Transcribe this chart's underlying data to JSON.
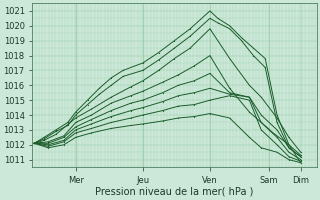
{
  "xlabel": "Pression niveau de la mer( hPa )",
  "background_color": "#cce8d8",
  "grid_color": "#99ccaa",
  "line_color": "#1a5c2a",
  "ylim": [
    1010.5,
    1021.5
  ],
  "yticks": [
    1011,
    1012,
    1013,
    1014,
    1015,
    1016,
    1017,
    1018,
    1019,
    1020,
    1021
  ],
  "xlim": [
    0.0,
    7.2
  ],
  "xtick_positions": [
    1.1,
    2.8,
    4.5,
    6.0,
    6.8
  ],
  "xtick_labels": [
    "Mer",
    "Jeu",
    "Ven",
    "Sam",
    "Dim"
  ],
  "day_vlines": [
    1.1,
    2.8,
    4.5,
    6.0
  ],
  "lines": [
    {
      "x": [
        0.05,
        0.3,
        0.6,
        0.9,
        1.1,
        1.4,
        1.7,
        2.0,
        2.3,
        2.8,
        3.2,
        3.6,
        4.0,
        4.5,
        4.7,
        5.0,
        5.3,
        5.6,
        5.9,
        6.2,
        6.5,
        6.8
      ],
      "y": [
        1012.1,
        1012.5,
        1013.0,
        1013.5,
        1014.2,
        1015.0,
        1015.8,
        1016.5,
        1017.0,
        1017.5,
        1018.2,
        1019.0,
        1019.8,
        1021.0,
        1020.5,
        1020.0,
        1019.2,
        1018.5,
        1017.8,
        1014.0,
        1012.0,
        1010.8
      ]
    },
    {
      "x": [
        0.05,
        0.3,
        0.6,
        0.9,
        1.1,
        1.4,
        1.7,
        2.0,
        2.3,
        2.8,
        3.2,
        3.6,
        4.0,
        4.5,
        4.7,
        5.0,
        5.3,
        5.6,
        5.9,
        6.2,
        6.5,
        6.8
      ],
      "y": [
        1012.1,
        1012.4,
        1012.9,
        1013.3,
        1014.0,
        1014.7,
        1015.4,
        1016.0,
        1016.6,
        1017.0,
        1017.7,
        1018.5,
        1019.3,
        1020.5,
        1020.2,
        1019.8,
        1019.0,
        1018.0,
        1017.2,
        1013.5,
        1011.8,
        1011.2
      ]
    },
    {
      "x": [
        0.05,
        0.3,
        0.6,
        1.1,
        1.5,
        2.0,
        2.5,
        2.8,
        3.2,
        3.6,
        4.0,
        4.5,
        5.0,
        5.5,
        5.8,
        6.2,
        6.5,
        6.8
      ],
      "y": [
        1012.1,
        1012.3,
        1012.7,
        1013.8,
        1014.4,
        1015.2,
        1015.9,
        1016.3,
        1017.0,
        1017.8,
        1018.5,
        1019.8,
        1017.8,
        1016.0,
        1015.2,
        1013.8,
        1012.5,
        1011.5
      ]
    },
    {
      "x": [
        0.05,
        0.4,
        0.8,
        1.1,
        1.5,
        2.0,
        2.5,
        2.8,
        3.3,
        3.7,
        4.1,
        4.5,
        5.0,
        5.5,
        5.8,
        6.1,
        6.5,
        6.8
      ],
      "y": [
        1012.1,
        1012.2,
        1012.6,
        1013.5,
        1014.0,
        1014.8,
        1015.3,
        1015.6,
        1016.2,
        1016.7,
        1017.3,
        1018.0,
        1015.8,
        1014.2,
        1013.5,
        1012.8,
        1012.0,
        1011.3
      ]
    },
    {
      "x": [
        0.05,
        0.4,
        0.8,
        1.1,
        1.5,
        2.0,
        2.5,
        2.8,
        3.3,
        3.7,
        4.1,
        4.5,
        5.0,
        5.5,
        5.8,
        6.2,
        6.5,
        6.8
      ],
      "y": [
        1012.1,
        1012.1,
        1012.5,
        1013.2,
        1013.7,
        1014.3,
        1014.8,
        1015.0,
        1015.5,
        1016.0,
        1016.3,
        1016.8,
        1015.5,
        1015.2,
        1014.0,
        1013.0,
        1011.8,
        1011.2
      ]
    },
    {
      "x": [
        0.05,
        0.4,
        0.8,
        1.1,
        1.5,
        2.0,
        2.5,
        2.8,
        3.3,
        3.7,
        4.1,
        4.5,
        5.0,
        5.5,
        5.8,
        6.2,
        6.5,
        6.8
      ],
      "y": [
        1012.1,
        1012.0,
        1012.3,
        1013.0,
        1013.4,
        1013.9,
        1014.3,
        1014.5,
        1014.9,
        1015.3,
        1015.5,
        1015.8,
        1015.4,
        1015.2,
        1013.5,
        1012.5,
        1011.5,
        1011.0
      ]
    },
    {
      "x": [
        0.05,
        0.4,
        0.8,
        1.1,
        1.5,
        2.0,
        2.5,
        2.8,
        3.3,
        3.7,
        4.1,
        4.5,
        5.0,
        5.5,
        5.8,
        6.2,
        6.5,
        6.8
      ],
      "y": [
        1012.1,
        1011.9,
        1012.2,
        1012.8,
        1013.1,
        1013.5,
        1013.8,
        1014.0,
        1014.3,
        1014.6,
        1014.7,
        1015.0,
        1015.3,
        1015.0,
        1013.0,
        1012.0,
        1011.2,
        1010.9
      ]
    },
    {
      "x": [
        0.05,
        0.4,
        0.8,
        1.1,
        1.5,
        2.0,
        2.5,
        2.8,
        3.3,
        3.7,
        4.1,
        4.5,
        5.0,
        5.5,
        5.8,
        6.2,
        6.5,
        6.8
      ],
      "y": [
        1012.1,
        1011.8,
        1012.0,
        1012.5,
        1012.8,
        1013.1,
        1013.3,
        1013.4,
        1013.6,
        1013.8,
        1013.9,
        1014.1,
        1013.8,
        1012.5,
        1011.8,
        1011.5,
        1011.0,
        1010.8
      ]
    }
  ],
  "ylabel_fontsize": 6,
  "xlabel_fontsize": 7,
  "tick_fontsize": 6
}
